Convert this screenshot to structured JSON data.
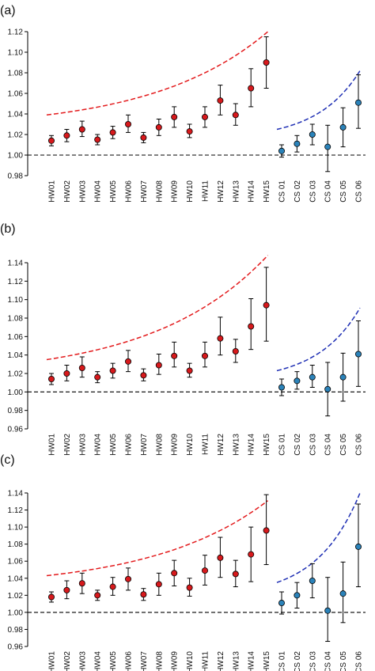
{
  "colors": {
    "hw_marker": "#d7191c",
    "cs_marker": "#2b83ba",
    "hw_curve": "#e31a1c",
    "cs_curve": "#1f2fb4",
    "baseline": "#000000",
    "errorbar": "#000000"
  },
  "chart_data": [
    {
      "type": "scatter",
      "panel_label": "(a)",
      "categories": [
        "HW01",
        "HW02",
        "HW03",
        "HW04",
        "HW05",
        "HW06",
        "HW07",
        "HW08",
        "HW09",
        "HW10",
        "HW11",
        "HW12",
        "HW13",
        "HW14",
        "HW15",
        "CS 01",
        "CS 02",
        "CS 03",
        "CS 04",
        "CS 05",
        "CS 06"
      ],
      "ylim": [
        0.98,
        1.12
      ],
      "yticks": [
        "0.98",
        "1.00",
        "1.02",
        "1.04",
        "1.06",
        "1.08",
        "1.10",
        "1.12"
      ],
      "reference_line": 1.0,
      "grid": false,
      "series": [
        {
          "group": "HW",
          "x_index": [
            0,
            1,
            2,
            3,
            4,
            5,
            6,
            7,
            8,
            9,
            10,
            11,
            12,
            13,
            14
          ],
          "values": [
            1.014,
            1.019,
            1.025,
            1.015,
            1.022,
            1.03,
            1.017,
            1.027,
            1.037,
            1.023,
            1.037,
            1.053,
            1.039,
            1.065,
            1.09
          ],
          "lower": [
            1.009,
            1.013,
            1.018,
            1.01,
            1.016,
            1.022,
            1.012,
            1.019,
            1.027,
            1.017,
            1.027,
            1.039,
            1.029,
            1.047,
            1.065
          ],
          "upper": [
            1.019,
            1.025,
            1.033,
            1.02,
            1.028,
            1.039,
            1.022,
            1.035,
            1.047,
            1.03,
            1.047,
            1.068,
            1.05,
            1.084,
            1.115
          ]
        },
        {
          "group": "CS",
          "x_index": [
            15,
            16,
            17,
            18,
            19,
            20
          ],
          "values": [
            1.004,
            1.011,
            1.02,
            1.008,
            1.027,
            1.051
          ],
          "lower": [
            0.998,
            1.003,
            1.01,
            0.984,
            1.008,
            1.026
          ],
          "upper": [
            1.01,
            1.019,
            1.03,
            1.029,
            1.046,
            1.078
          ]
        }
      ],
      "curves": [
        {
          "group": "HW",
          "x_index": [
            0,
            14
          ],
          "y": [
            1.039,
            1.12
          ]
        },
        {
          "group": "CS",
          "x_index": [
            15,
            20
          ],
          "y": [
            1.025,
            1.082
          ]
        }
      ]
    },
    {
      "type": "scatter",
      "panel_label": "(b)",
      "categories": [
        "HW01",
        "HW02",
        "HW03",
        "HW04",
        "HW05",
        "HW06",
        "HW07",
        "HW08",
        "HW09",
        "HW10",
        "HW11",
        "HW12",
        "HW13",
        "HW14",
        "HW15",
        "CS 01",
        "CS 02",
        "CS 03",
        "CS 04",
        "CS 05",
        "CS 06"
      ],
      "ylim": [
        0.96,
        1.14
      ],
      "yticks": [
        "0.96",
        "0.98",
        "1.00",
        "1.02",
        "1.04",
        "1.06",
        "1.08",
        "1.10",
        "1.12",
        "1.14"
      ],
      "reference_line": 1.0,
      "grid": false,
      "series": [
        {
          "group": "HW",
          "x_index": [
            0,
            1,
            2,
            3,
            4,
            5,
            6,
            7,
            8,
            9,
            10,
            11,
            12,
            13,
            14
          ],
          "values": [
            1.014,
            1.02,
            1.026,
            1.016,
            1.023,
            1.033,
            1.018,
            1.029,
            1.039,
            1.023,
            1.039,
            1.058,
            1.044,
            1.071,
            1.094
          ],
          "lower": [
            1.008,
            1.012,
            1.016,
            1.01,
            1.015,
            1.022,
            1.012,
            1.019,
            1.027,
            1.016,
            1.027,
            1.04,
            1.032,
            1.046,
            1.055
          ],
          "upper": [
            1.02,
            1.029,
            1.038,
            1.022,
            1.031,
            1.045,
            1.025,
            1.041,
            1.054,
            1.031,
            1.054,
            1.081,
            1.057,
            1.101,
            1.135
          ]
        },
        {
          "group": "CS",
          "x_index": [
            15,
            20
          ],
          "values": [
            1.005,
            1.041
          ],
          "lower": [
            0.996,
            1.006
          ],
          "upper": [
            1.014,
            1.077
          ]
        },
        {
          "group": "CS",
          "x_index": [
            16,
            17,
            18,
            19
          ],
          "values": [
            1.012,
            1.016,
            1.003,
            1.016
          ],
          "lower": [
            1.003,
            1.005,
            0.974,
            0.99
          ],
          "upper": [
            1.022,
            1.029,
            1.032,
            1.042
          ]
        }
      ],
      "curves": [
        {
          "group": "HW",
          "x_index": [
            0,
            14
          ],
          "y": [
            1.035,
            1.148
          ]
        },
        {
          "group": "CS",
          "x_index": [
            15,
            20
          ],
          "y": [
            1.023,
            1.091
          ]
        }
      ]
    },
    {
      "type": "scatter",
      "panel_label": "(c)",
      "categories": [
        "HW01",
        "HW02",
        "HW03",
        "HW04",
        "HW05",
        "HW06",
        "HW07",
        "HW08",
        "HW09",
        "HW10",
        "HW11",
        "HW12",
        "HW13",
        "HW14",
        "HW15",
        "CS 01",
        "CS 02",
        "CS 03",
        "CS 04",
        "CS 05",
        "CS 06"
      ],
      "ylim": [
        0.96,
        1.14
      ],
      "yticks": [
        "0.96",
        "0.98",
        "1.00",
        "1.02",
        "1.04",
        "1.06",
        "1.08",
        "1.10",
        "1.12",
        "1.14"
      ],
      "reference_line": 1.0,
      "grid": false,
      "series": [
        {
          "group": "HW",
          "x_index": [
            0,
            1,
            2,
            3,
            4,
            5,
            6,
            7,
            8,
            9,
            10,
            11,
            12,
            13,
            14
          ],
          "values": [
            1.018,
            1.026,
            1.034,
            1.02,
            1.03,
            1.039,
            1.021,
            1.033,
            1.046,
            1.029,
            1.049,
            1.064,
            1.045,
            1.068,
            1.096
          ],
          "lower": [
            1.012,
            1.016,
            1.022,
            1.014,
            1.02,
            1.026,
            1.014,
            1.02,
            1.031,
            1.019,
            1.032,
            1.041,
            1.03,
            1.036,
            1.056
          ],
          "upper": [
            1.024,
            1.037,
            1.046,
            1.026,
            1.041,
            1.052,
            1.028,
            1.046,
            1.061,
            1.04,
            1.067,
            1.088,
            1.061,
            1.1,
            1.138
          ]
        },
        {
          "group": "CS",
          "x_index": [
            15,
            16,
            17,
            18,
            19,
            20
          ],
          "values": [
            1.011,
            1.02,
            1.037,
            1.002,
            1.022,
            1.077
          ],
          "lower": [
            0.998,
            1.005,
            1.017,
            0.966,
            0.988,
            1.03
          ],
          "upper": [
            1.024,
            1.035,
            1.057,
            1.041,
            1.059,
            1.127
          ]
        }
      ],
      "curves": [
        {
          "group": "HW",
          "x_index": [
            0,
            14
          ],
          "y": [
            1.043,
            1.131
          ]
        },
        {
          "group": "CS",
          "x_index": [
            15,
            20
          ],
          "y": [
            1.035,
            1.14
          ]
        }
      ]
    }
  ]
}
